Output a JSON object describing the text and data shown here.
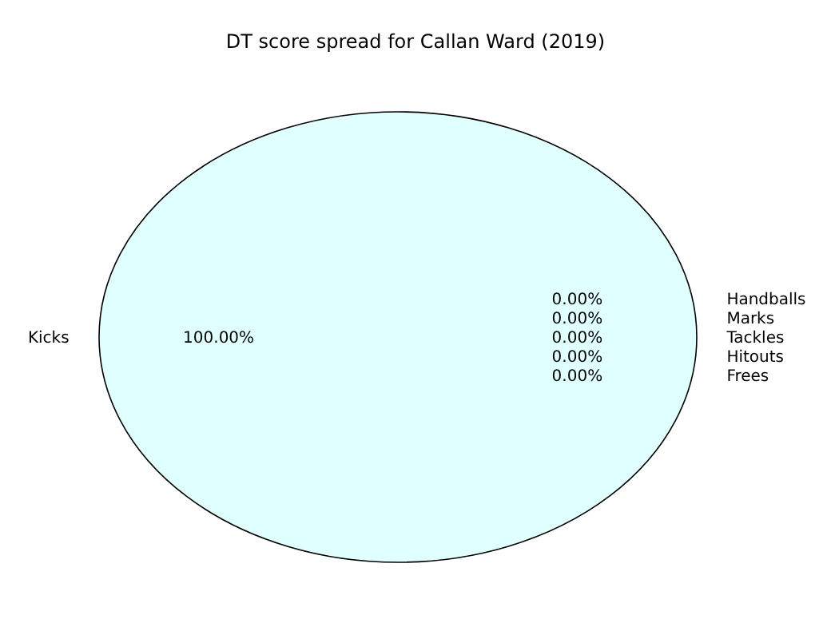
{
  "chart_data": {
    "type": "pie",
    "title": "DT score spread for Callan Ward (2019)",
    "categories": [
      "Kicks",
      "Handballs",
      "Marks",
      "Tackles",
      "Hitouts",
      "Frees"
    ],
    "values": [
      100,
      0,
      0,
      0,
      0,
      0
    ],
    "colors": [
      "#e0ffff",
      null,
      null,
      null,
      null,
      null
    ],
    "value_labels": [
      "100.00%",
      "0.00%",
      "0.00%",
      "0.00%",
      "0.00%",
      "0.00%"
    ],
    "legend": false
  }
}
